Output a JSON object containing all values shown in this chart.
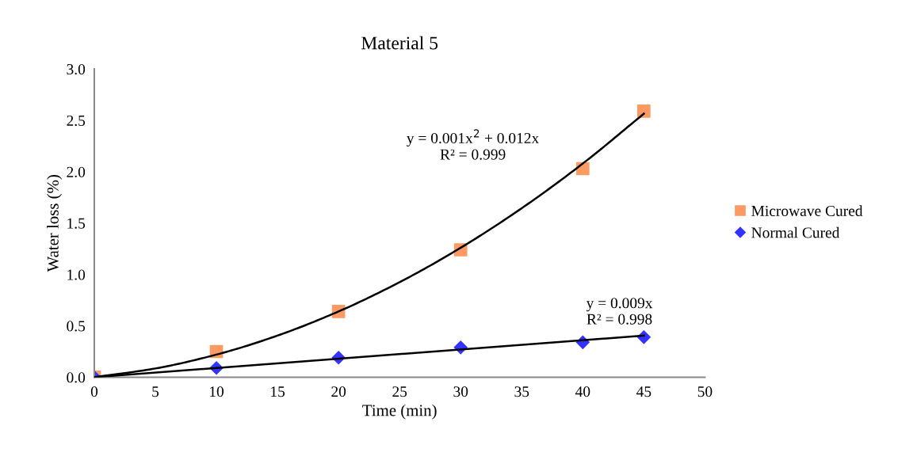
{
  "chart_data": {
    "type": "scatter",
    "title": "Material 5",
    "xlabel": "Time (min)",
    "ylabel": "Water loss (%)",
    "x": [
      0,
      10,
      20,
      30,
      40,
      45
    ],
    "series": [
      {
        "name": "Microwave Cured",
        "color": "#fb9a62",
        "marker": "square",
        "values": [
          0,
          0.25,
          0.64,
          1.24,
          2.03,
          2.59
        ]
      },
      {
        "name": "Normal Cured",
        "color": "#3333ff",
        "marker": "diamond",
        "values": [
          0,
          0.09,
          0.19,
          0.29,
          0.34,
          0.39
        ]
      },
      {
        "type": "line",
        "color": "#000000",
        "x": [
          0,
          5,
          10,
          15,
          20,
          25,
          30,
          35,
          40,
          45
        ],
        "values": [
          0,
          0.085,
          0.22,
          0.405,
          0.64,
          0.925,
          1.26,
          1.645,
          2.08,
          2.565
        ]
      },
      {
        "type": "line",
        "color": "#000000",
        "x": [
          0,
          45
        ],
        "values": [
          0,
          0.405
        ]
      }
    ],
    "annotations": [
      "y = 0.001x$^{2}$ + 0.012x\nR² = 0.999",
      "y = 0.009x\nR² = 0.998"
    ],
    "xlim": [
      0,
      50
    ],
    "xticks": [
      0,
      5,
      10,
      15,
      20,
      25,
      30,
      35,
      40,
      45,
      50
    ],
    "ylim": [
      0,
      3.0
    ],
    "yticks": [
      {
        "value": 0,
        "label": "0.0"
      },
      {
        "value": 0.5,
        "label": "0.5"
      },
      {
        "value": 1.0,
        "label": "1.0"
      },
      {
        "value": 1.5,
        "label": "1.5"
      },
      {
        "value": 2.0,
        "label": "2.0"
      },
      {
        "value": 2.5,
        "label": "2.5"
      },
      {
        "value": 3.0,
        "label": "3.0"
      }
    ],
    "grid": false,
    "legend": "right"
  }
}
